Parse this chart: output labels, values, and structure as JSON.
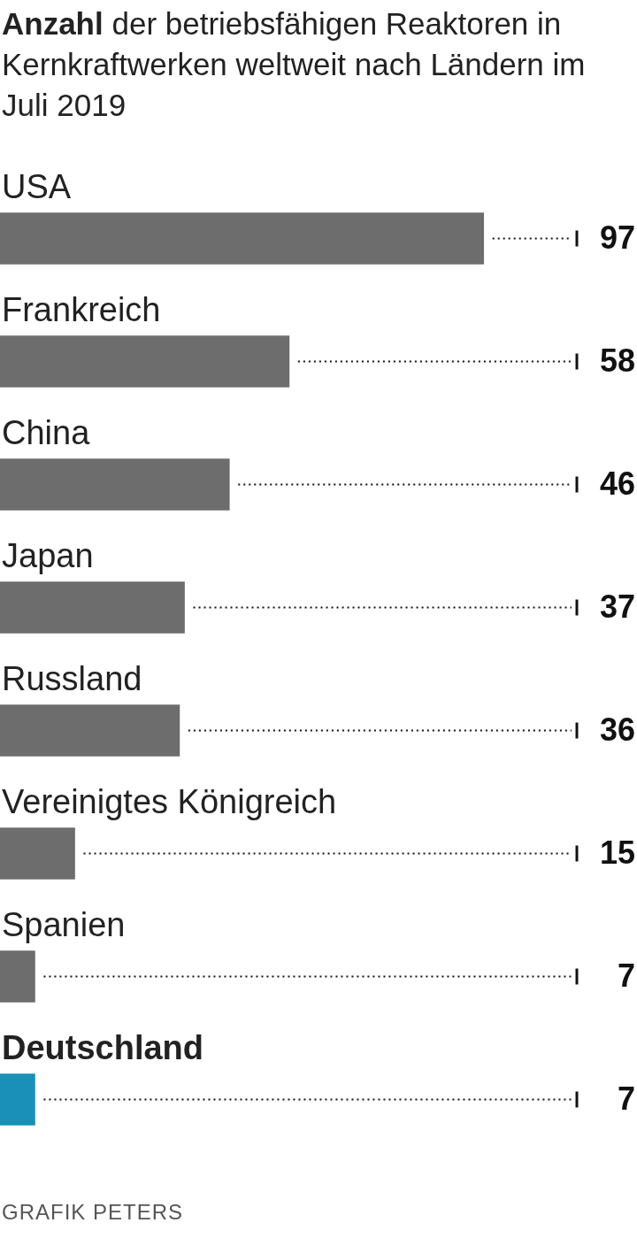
{
  "chart_data": {
    "type": "bar",
    "orientation": "horizontal",
    "title": "Anzahl der betriebsfähigen Reaktoren in Kernkraftwerken weltweit nach Ländern im Juli 2019",
    "categories": [
      "USA",
      "Frankreich",
      "China",
      "Japan",
      "Russland",
      "Vereinigtes Königreich",
      "Spanien",
      "Deutschland"
    ],
    "values": [
      97,
      58,
      46,
      37,
      36,
      15,
      7,
      7
    ],
    "colors": [
      "#6d6d6d",
      "#6d6d6d",
      "#6d6d6d",
      "#6d6d6d",
      "#6d6d6d",
      "#6d6d6d",
      "#6d6d6d",
      "#1a8fb8"
    ],
    "data_labels": true,
    "legend": false,
    "annotations": [
      "GRAFIK PETERS"
    ]
  }
}
